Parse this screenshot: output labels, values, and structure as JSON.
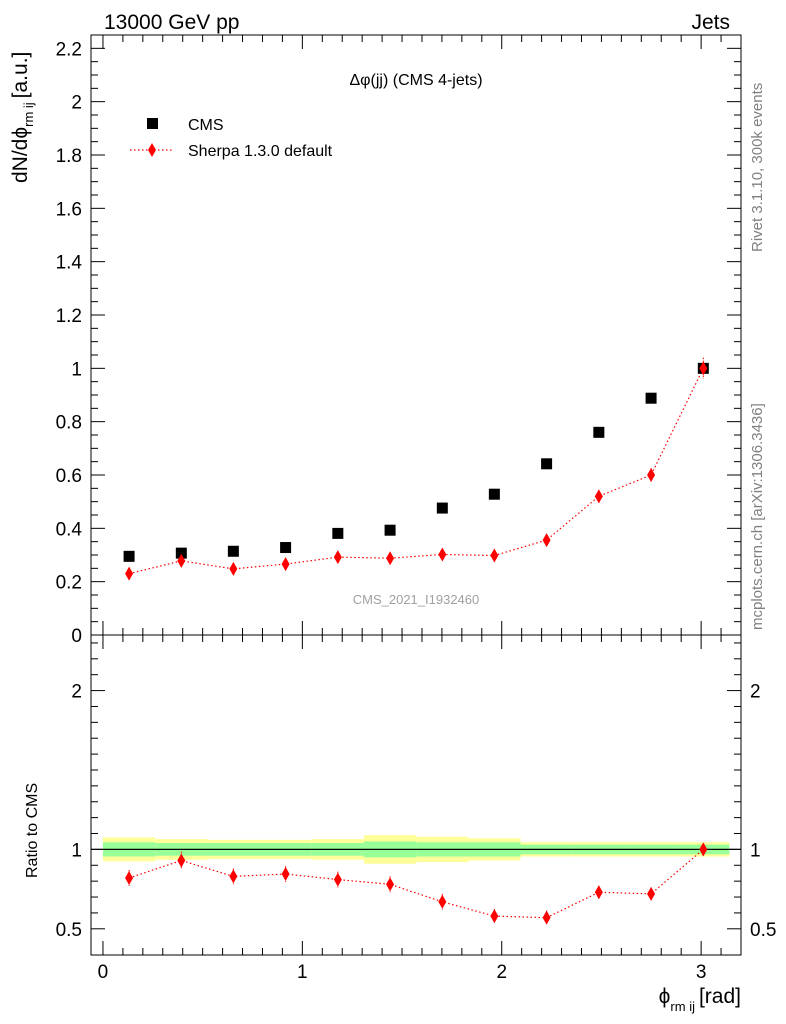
{
  "header": {
    "left": "13000 GeV pp",
    "right": "Jets"
  },
  "side_labels": {
    "rivet": "Rivet 3.1.10,  300k events",
    "mcplots": "mcplots.cern.ch [arXiv:1306.3436]"
  },
  "watermark": "CMS_2021_I1932460",
  "chart_data": [
    {
      "type": "scatter",
      "title": "Δφ(jj) (CMS 4-jets)",
      "ylabel_main": "dN/dϕ",
      "ylabel_sub": "rm ij",
      "ylabel_unit": "[a.u.]",
      "ylim": [
        0,
        2.25
      ],
      "yticks": [
        0,
        0.2,
        0.4,
        0.6,
        0.8,
        1,
        1.2,
        1.4,
        1.6,
        1.8,
        2,
        2.2
      ],
      "ytick_labels": [
        "0",
        "0.2",
        "0.4",
        "0.6",
        "0.8",
        "1",
        "1.2",
        "1.4",
        "1.6",
        "1.8",
        "2",
        "2.2"
      ],
      "xlim": [
        -0.06,
        3.2
      ],
      "legend": {
        "position": "top-left",
        "entries": [
          "CMS",
          "Sherpa 1.3.0 default"
        ]
      },
      "series": [
        {
          "name": "CMS",
          "style": "black-square",
          "x": [
            0.131,
            0.393,
            0.654,
            0.916,
            1.178,
            1.44,
            1.702,
            1.963,
            2.225,
            2.487,
            2.749,
            3.011
          ],
          "y": [
            0.295,
            0.307,
            0.314,
            0.328,
            0.381,
            0.393,
            0.476,
            0.528,
            0.642,
            0.76,
            0.888,
            1.0
          ]
        },
        {
          "name": "Sherpa 1.3.0 default",
          "style": "red-diamond-dotted",
          "x": [
            0.131,
            0.393,
            0.654,
            0.916,
            1.178,
            1.44,
            1.702,
            1.963,
            2.225,
            2.487,
            2.749,
            3.011
          ],
          "y": [
            0.23,
            0.278,
            0.248,
            0.266,
            0.292,
            0.288,
            0.302,
            0.298,
            0.356,
            0.52,
            0.6,
            1.0
          ],
          "err": [
            0.015,
            0.018,
            0.016,
            0.018,
            0.018,
            0.018,
            0.018,
            0.018,
            0.02,
            0.024,
            0.026,
            0.04
          ]
        }
      ]
    },
    {
      "type": "scatter",
      "ylabel": "Ratio to CMS",
      "xlabel_main": "ϕ",
      "xlabel_sub": "rm ij",
      "xlabel_unit": "[rad]",
      "ylim": [
        0.335,
        2.35
      ],
      "yticks": [
        0.5,
        1,
        2
      ],
      "ytick_labels": [
        "0.5",
        "1",
        "2"
      ],
      "xlim": [
        -0.06,
        3.2
      ],
      "xticks": [
        0,
        1,
        2,
        3
      ],
      "xtick_labels": [
        "0",
        "1",
        "2",
        "3"
      ],
      "bands": {
        "edges": [
          0,
          0.262,
          0.524,
          0.785,
          1.047,
          1.309,
          1.571,
          1.833,
          2.094,
          2.356,
          2.618,
          2.88,
          3.142
        ],
        "green_half": [
          0.045,
          0.04,
          0.04,
          0.04,
          0.04,
          0.05,
          0.045,
          0.045,
          0.03,
          0.03,
          0.03,
          0.03
        ],
        "yellow_half": [
          0.075,
          0.065,
          0.06,
          0.06,
          0.065,
          0.09,
          0.08,
          0.07,
          0.045,
          0.045,
          0.045,
          0.045
        ]
      },
      "series": [
        {
          "name": "Sherpa 1.3.0 default / CMS",
          "style": "red-diamond-dotted",
          "x": [
            0.131,
            0.393,
            0.654,
            0.916,
            1.178,
            1.44,
            1.702,
            1.963,
            2.225,
            2.487,
            2.749,
            3.011
          ],
          "y": [
            0.82,
            0.93,
            0.83,
            0.845,
            0.81,
            0.78,
            0.67,
            0.58,
            0.57,
            0.73,
            0.72,
            1.0
          ],
          "err": [
            0.05,
            0.055,
            0.05,
            0.05,
            0.05,
            0.05,
            0.05,
            0.045,
            0.045,
            0.04,
            0.04,
            0.04
          ]
        }
      ]
    }
  ]
}
